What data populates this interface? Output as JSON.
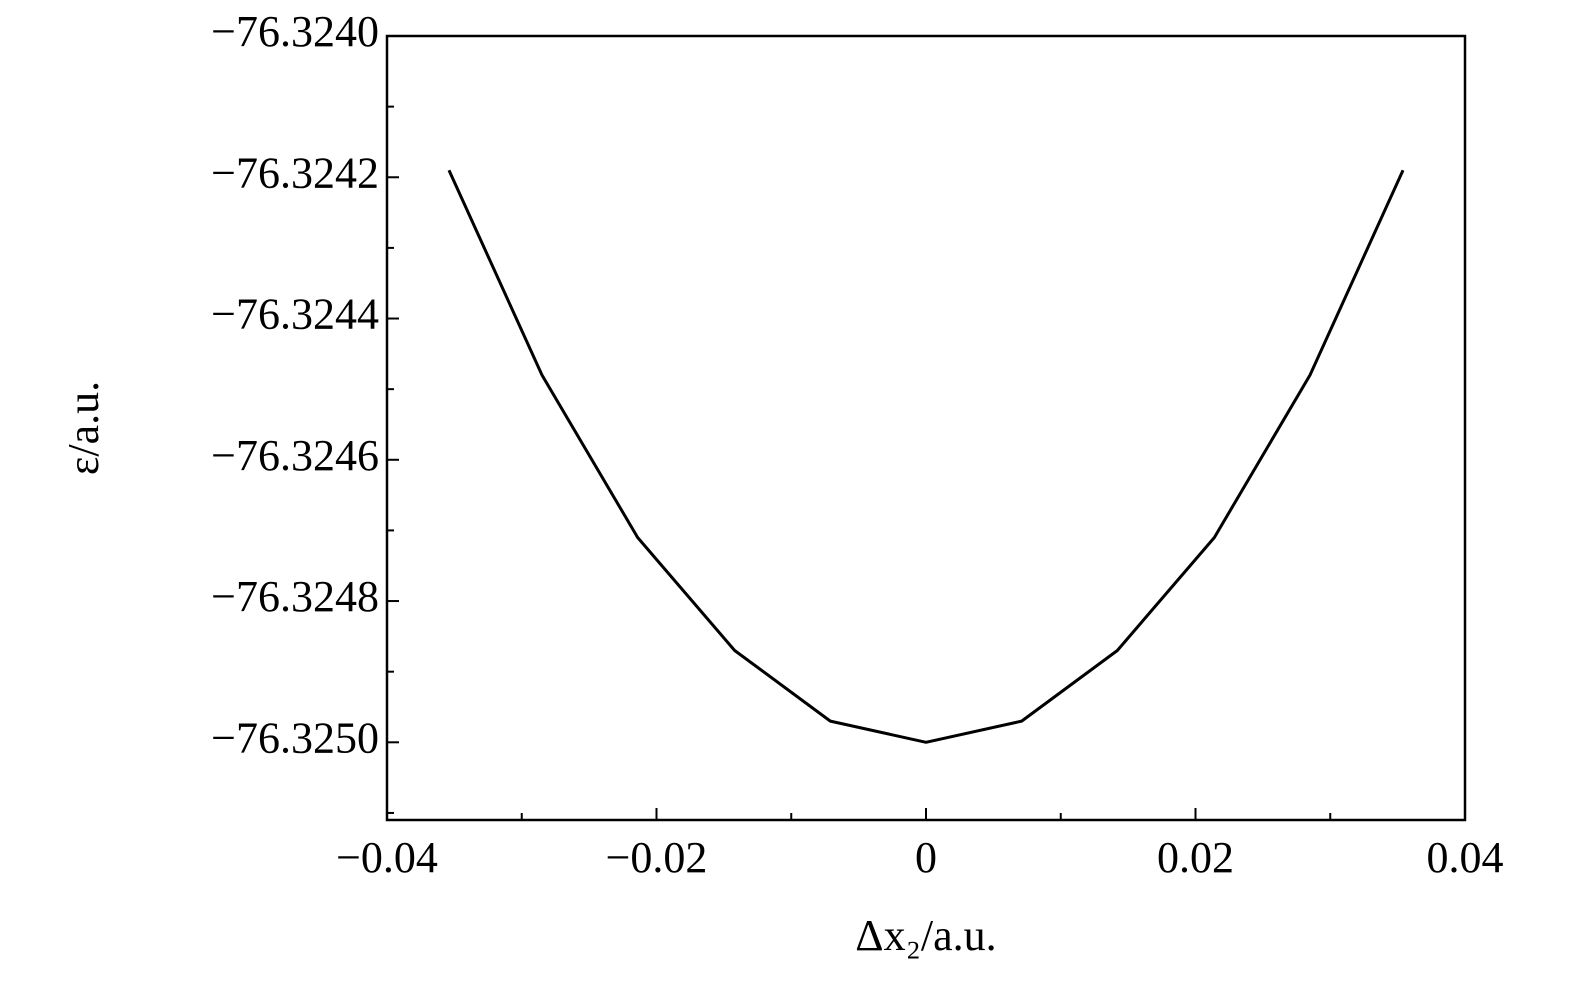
{
  "chart_data": {
    "type": "line",
    "xlabel": "Δx₂/a.u.",
    "ylabel": "ε/a.u.",
    "x": [
      -0.0354,
      -0.0285,
      -0.0214,
      -0.0142,
      -0.0071,
      0,
      0.0071,
      0.0142,
      0.0214,
      0.0285,
      0.0354
    ],
    "series": [
      {
        "color": "#000000",
        "values": [
          -76.32419,
          -76.32448,
          -76.32471,
          -76.32487,
          -76.32497,
          -76.325,
          -76.32497,
          -76.32487,
          -76.32471,
          -76.32448,
          -76.32419
        ]
      }
    ],
    "xlim": [
      -0.04,
      0.04
    ],
    "ylim": [
      -76.32511,
      -76.324
    ],
    "xticks": [
      {
        "value": -0.04,
        "label": "−0.04"
      },
      {
        "value": -0.02,
        "label": "−0.02"
      },
      0,
      0.02,
      0.04
    ],
    "yticks": [
      {
        "value": -76.324,
        "label": "−76.3240"
      },
      {
        "value": -76.3242,
        "label": "−76.3242"
      },
      {
        "value": -76.3244,
        "label": "−76.3244"
      },
      {
        "value": -76.3246,
        "label": "−76.3246"
      },
      {
        "value": -76.3248,
        "label": "−76.3248"
      },
      {
        "value": -76.325,
        "label": "−76.3250"
      }
    ],
    "grid": false
  }
}
